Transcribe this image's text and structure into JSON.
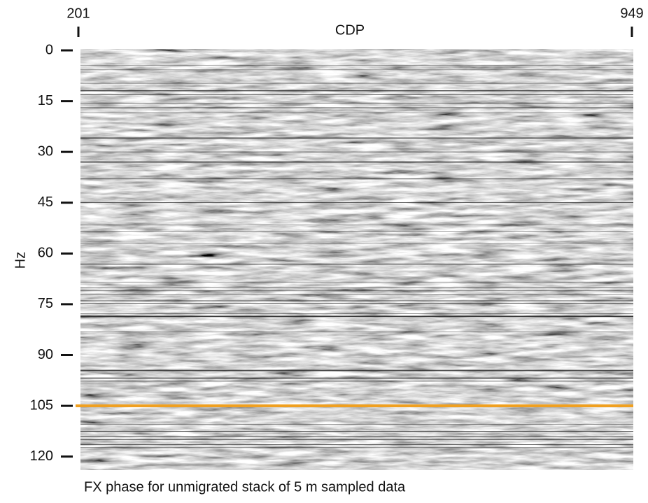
{
  "chart_data": {
    "type": "image",
    "caption": "FX phase for unmigrated stack of 5 m sampled data",
    "xlabel": "CDP",
    "ylabel": "Hz",
    "xlim": [
      201,
      949
    ],
    "xticks": [
      201,
      949
    ],
    "ylim": [
      0,
      124
    ],
    "yticks": [
      0,
      15,
      30,
      45,
      60,
      75,
      90,
      105,
      120
    ],
    "hline": {
      "value": 105,
      "color": "#f0a020"
    }
  }
}
